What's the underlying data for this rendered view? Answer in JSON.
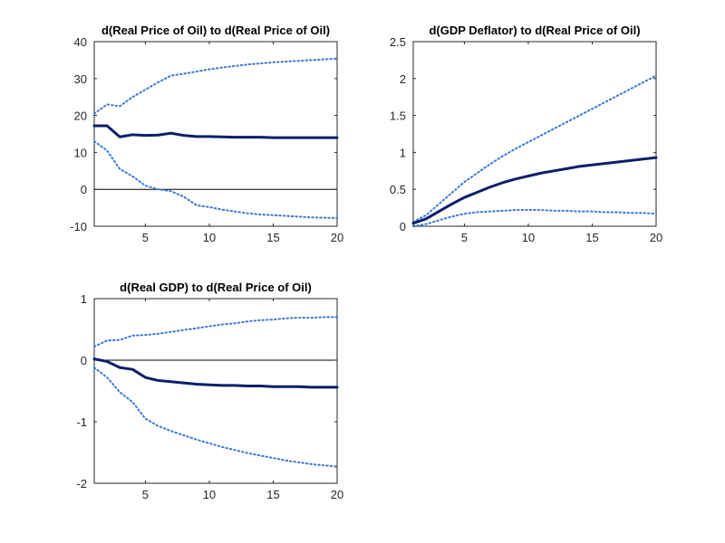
{
  "colors": {
    "irf": "#0b1f6b",
    "bands": "#3a78d4",
    "axis": "#262626",
    "zero_line": "#000000",
    "background": "#ffffff"
  },
  "chart_data": [
    {
      "type": "line",
      "title": "d(Real Price of Oil) to d(Real Price of Oil)",
      "xlabel": "",
      "ylabel": "",
      "xlim": [
        1,
        20
      ],
      "ylim": [
        -10,
        40
      ],
      "xticks": [
        5,
        10,
        15,
        20
      ],
      "yticks": [
        -10,
        0,
        10,
        20,
        30,
        40
      ],
      "zero_line": true,
      "grid": false,
      "x": [
        1,
        2,
        3,
        4,
        5,
        6,
        7,
        8,
        9,
        10,
        11,
        12,
        13,
        14,
        15,
        16,
        17,
        18,
        19,
        20
      ],
      "series": [
        {
          "role": "irf",
          "style": "solid",
          "values": [
            17.2,
            17.2,
            14.2,
            14.8,
            14.6,
            14.7,
            15.2,
            14.6,
            14.3,
            14.3,
            14.2,
            14.1,
            14.1,
            14.1,
            14.0,
            14.0,
            14.0,
            14.0,
            14.0,
            14.0
          ]
        },
        {
          "role": "upper",
          "style": "dotted",
          "values": [
            20.5,
            23.0,
            22.5,
            25.0,
            27.0,
            29.0,
            30.8,
            31.3,
            31.9,
            32.5,
            33.0,
            33.4,
            33.8,
            34.1,
            34.4,
            34.6,
            34.8,
            35.0,
            35.2,
            35.4
          ]
        },
        {
          "role": "lower",
          "style": "dotted",
          "values": [
            13.0,
            10.5,
            5.5,
            3.5,
            1.0,
            0.0,
            -0.5,
            -2.0,
            -4.3,
            -4.8,
            -5.5,
            -6.0,
            -6.5,
            -6.8,
            -7.0,
            -7.2,
            -7.4,
            -7.6,
            -7.7,
            -7.8
          ]
        }
      ]
    },
    {
      "type": "line",
      "title": "d(GDP Deflator) to d(Real Price of Oil)",
      "xlabel": "",
      "ylabel": "",
      "xlim": [
        1,
        20
      ],
      "ylim": [
        0,
        2.5
      ],
      "xticks": [
        5,
        10,
        15,
        20
      ],
      "yticks": [
        0,
        0.5,
        1,
        1.5,
        2,
        2.5
      ],
      "zero_line": false,
      "grid": false,
      "x": [
        1,
        2,
        3,
        4,
        5,
        6,
        7,
        8,
        9,
        10,
        11,
        12,
        13,
        14,
        15,
        16,
        17,
        18,
        19,
        20
      ],
      "series": [
        {
          "role": "irf",
          "style": "solid",
          "values": [
            0.04,
            0.1,
            0.2,
            0.3,
            0.39,
            0.46,
            0.53,
            0.59,
            0.64,
            0.68,
            0.72,
            0.75,
            0.78,
            0.81,
            0.83,
            0.85,
            0.87,
            0.89,
            0.91,
            0.93
          ]
        },
        {
          "role": "upper",
          "style": "dotted",
          "values": [
            0.06,
            0.15,
            0.3,
            0.45,
            0.6,
            0.72,
            0.84,
            0.95,
            1.05,
            1.14,
            1.23,
            1.32,
            1.41,
            1.5,
            1.59,
            1.68,
            1.77,
            1.86,
            1.95,
            2.04
          ]
        },
        {
          "role": "lower",
          "style": "dotted",
          "values": [
            0.0,
            0.03,
            0.08,
            0.13,
            0.17,
            0.19,
            0.2,
            0.21,
            0.22,
            0.22,
            0.22,
            0.21,
            0.21,
            0.2,
            0.2,
            0.19,
            0.19,
            0.18,
            0.18,
            0.17
          ]
        }
      ]
    },
    {
      "type": "line",
      "title": "d(Real GDP) to d(Real Price of Oil)",
      "xlabel": "",
      "ylabel": "",
      "xlim": [
        1,
        20
      ],
      "ylim": [
        -2,
        1
      ],
      "xticks": [
        5,
        10,
        15,
        20
      ],
      "yticks": [
        -2,
        -1,
        0,
        1
      ],
      "zero_line": true,
      "grid": false,
      "x": [
        1,
        2,
        3,
        4,
        5,
        6,
        7,
        8,
        9,
        10,
        11,
        12,
        13,
        14,
        15,
        16,
        17,
        18,
        19,
        20
      ],
      "series": [
        {
          "role": "irf",
          "style": "solid",
          "values": [
            0.02,
            -0.02,
            -0.12,
            -0.15,
            -0.28,
            -0.33,
            -0.35,
            -0.37,
            -0.39,
            -0.4,
            -0.41,
            -0.41,
            -0.42,
            -0.42,
            -0.43,
            -0.43,
            -0.43,
            -0.44,
            -0.44,
            -0.44
          ]
        },
        {
          "role": "upper",
          "style": "dotted",
          "values": [
            0.22,
            0.32,
            0.33,
            0.4,
            0.41,
            0.43,
            0.46,
            0.49,
            0.52,
            0.55,
            0.58,
            0.6,
            0.63,
            0.65,
            0.66,
            0.68,
            0.69,
            0.69,
            0.7,
            0.7
          ]
        },
        {
          "role": "lower",
          "style": "dotted",
          "values": [
            -0.12,
            -0.28,
            -0.52,
            -0.68,
            -0.95,
            -1.07,
            -1.15,
            -1.22,
            -1.29,
            -1.35,
            -1.41,
            -1.46,
            -1.51,
            -1.55,
            -1.59,
            -1.63,
            -1.66,
            -1.69,
            -1.71,
            -1.73
          ]
        }
      ]
    }
  ]
}
